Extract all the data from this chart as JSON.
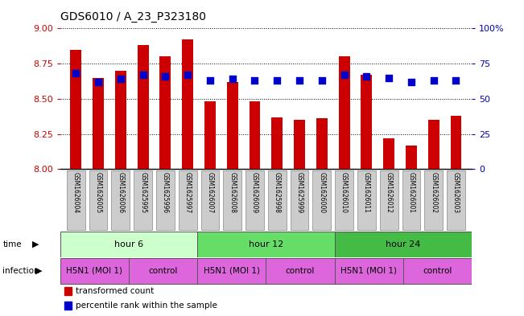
{
  "title": "GDS6010 / A_23_P323180",
  "samples": [
    "GSM1626004",
    "GSM1626005",
    "GSM1626006",
    "GSM1625995",
    "GSM1625996",
    "GSM1625997",
    "GSM1626007",
    "GSM1626008",
    "GSM1626009",
    "GSM1625998",
    "GSM1625999",
    "GSM1626000",
    "GSM1626010",
    "GSM1626011",
    "GSM1626012",
    "GSM1626001",
    "GSM1626002",
    "GSM1626003"
  ],
  "transformed_count": [
    8.85,
    8.65,
    8.7,
    8.88,
    8.8,
    8.92,
    8.48,
    8.62,
    8.48,
    8.37,
    8.35,
    8.36,
    8.8,
    8.67,
    8.22,
    8.17,
    8.35,
    8.38
  ],
  "percentile_rank": [
    68,
    62,
    64,
    67,
    66,
    67,
    63,
    64,
    63,
    63,
    63,
    63,
    67,
    66,
    65,
    62,
    63,
    63
  ],
  "ylim_left": [
    8.0,
    9.0
  ],
  "ylim_right": [
    0,
    100
  ],
  "yticks_left": [
    8.0,
    8.25,
    8.5,
    8.75,
    9.0
  ],
  "yticks_right": [
    0,
    25,
    50,
    75,
    100
  ],
  "bar_color": "#cc0000",
  "dot_color": "#0000cc",
  "ylabel_left_color": "#cc0000",
  "ylabel_right_color": "#0000bb",
  "bar_width": 0.5,
  "dot_size": 30,
  "time_groups": [
    {
      "label": "hour 6",
      "start": 0,
      "end": 6,
      "color": "#ccffcc"
    },
    {
      "label": "hour 12",
      "start": 6,
      "end": 12,
      "color": "#66dd66"
    },
    {
      "label": "hour 24",
      "start": 12,
      "end": 18,
      "color": "#44bb44"
    }
  ],
  "infection_groups": [
    {
      "label": "H5N1 (MOI 1)",
      "start": 0,
      "end": 3,
      "color": "#dd66dd"
    },
    {
      "label": "control",
      "start": 3,
      "end": 6,
      "color": "#dd66dd"
    },
    {
      "label": "H5N1 (MOI 1)",
      "start": 6,
      "end": 9,
      "color": "#dd66dd"
    },
    {
      "label": "control",
      "start": 9,
      "end": 12,
      "color": "#dd66dd"
    },
    {
      "label": "H5N1 (MOI 1)",
      "start": 12,
      "end": 15,
      "color": "#dd66dd"
    },
    {
      "label": "control",
      "start": 15,
      "end": 18,
      "color": "#dd66dd"
    }
  ],
  "sample_box_color": "#cccccc",
  "fig_bg": "#ffffff"
}
